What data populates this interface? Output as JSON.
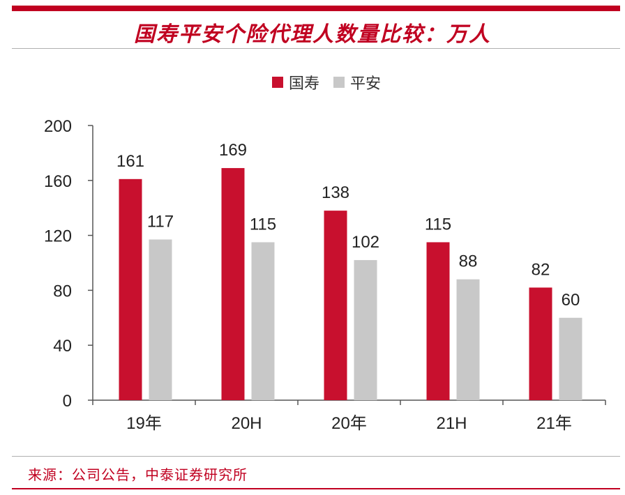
{
  "title": "国寿平安个险代理人数量比较：万人",
  "source": "来源：公司公告，中泰证券研究所",
  "colors": {
    "accent": "#c00020",
    "series1": "#c8102e",
    "series2": "#c8c8c8"
  },
  "chart_data": {
    "type": "bar",
    "title": "国寿平安个险代理人数量比较：万人",
    "categories": [
      "19年",
      "20H",
      "20年",
      "21H",
      "21年"
    ],
    "series": [
      {
        "name": "国寿",
        "values": [
          161,
          169,
          138,
          115,
          82
        ],
        "color": "#c8102e"
      },
      {
        "name": "平安",
        "values": [
          117,
          115,
          102,
          88,
          60
        ],
        "color": "#c8c8c8"
      }
    ],
    "ylim": [
      0,
      200
    ],
    "yticks": [
      "0",
      "40",
      "80",
      "120",
      "160",
      "200"
    ],
    "xlabel": "",
    "ylabel": "",
    "grid": false,
    "legend_position": "top-center",
    "data_labels": true
  }
}
